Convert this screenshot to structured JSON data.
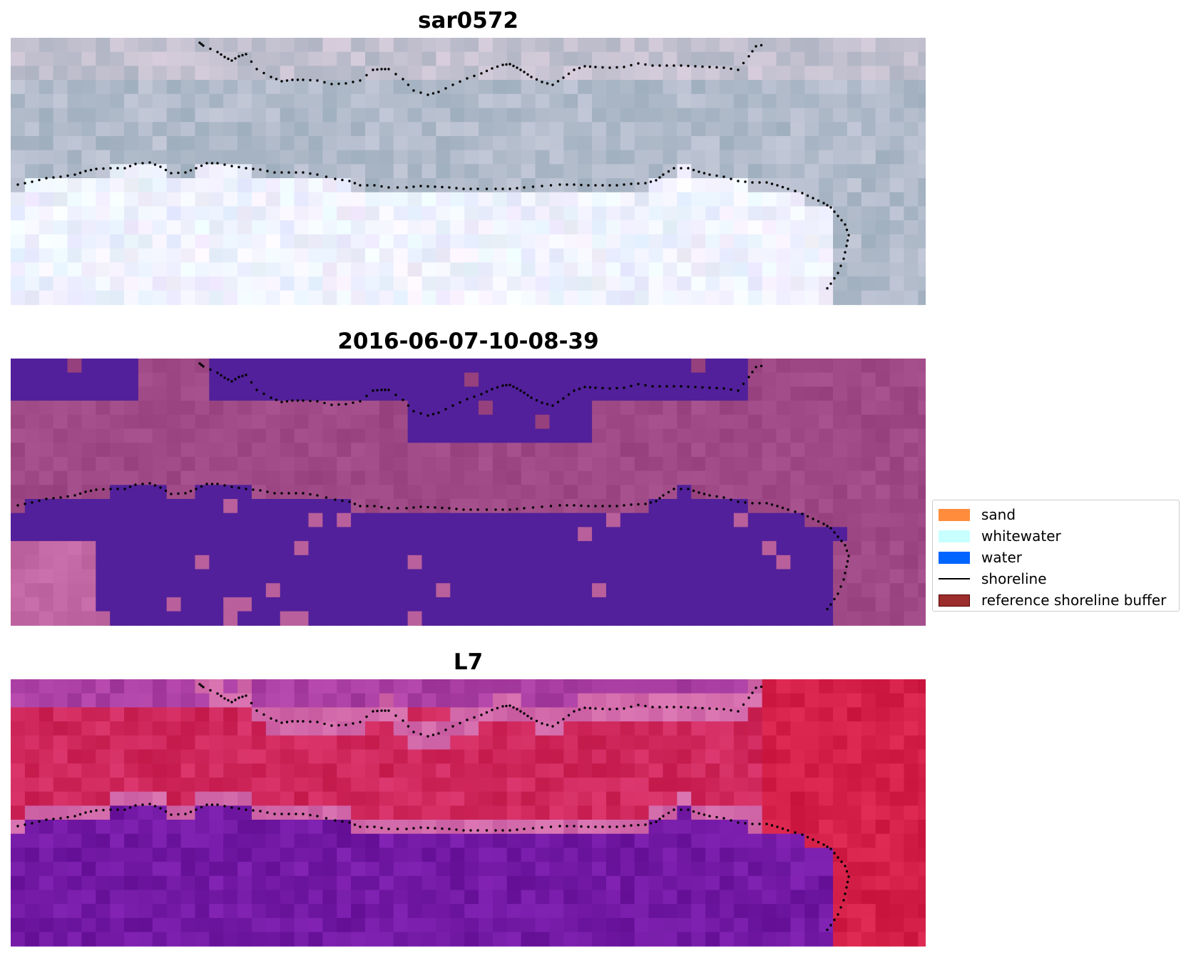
{
  "panels": [
    {
      "title": "sar0572",
      "palette": "rgb"
    },
    {
      "title": "2016-06-07-10-08-39",
      "palette": "classified"
    },
    {
      "title": "L7",
      "palette": "index"
    }
  ],
  "legend": {
    "items": [
      {
        "label": "sand",
        "type": "patch",
        "color": "#ff8c3c",
        "edge": "#ff8c3c"
      },
      {
        "label": "whitewater",
        "type": "patch",
        "color": "#c8ffff",
        "edge": "#c8ffff"
      },
      {
        "label": "water",
        "type": "patch",
        "color": "#0064ff",
        "edge": "#0064ff"
      },
      {
        "label": "shoreline",
        "type": "line",
        "color": "#000000"
      },
      {
        "label": "reference shoreline buffer",
        "type": "patch",
        "color": "#9b2d2d",
        "edge": "#5a0000"
      }
    ]
  },
  "colors": {
    "shoreline_points": "#000000",
    "classified_water": "#52209a",
    "classified_land": "#9a4680",
    "index_high": "#c8103e",
    "index_low": "#60109c"
  }
}
